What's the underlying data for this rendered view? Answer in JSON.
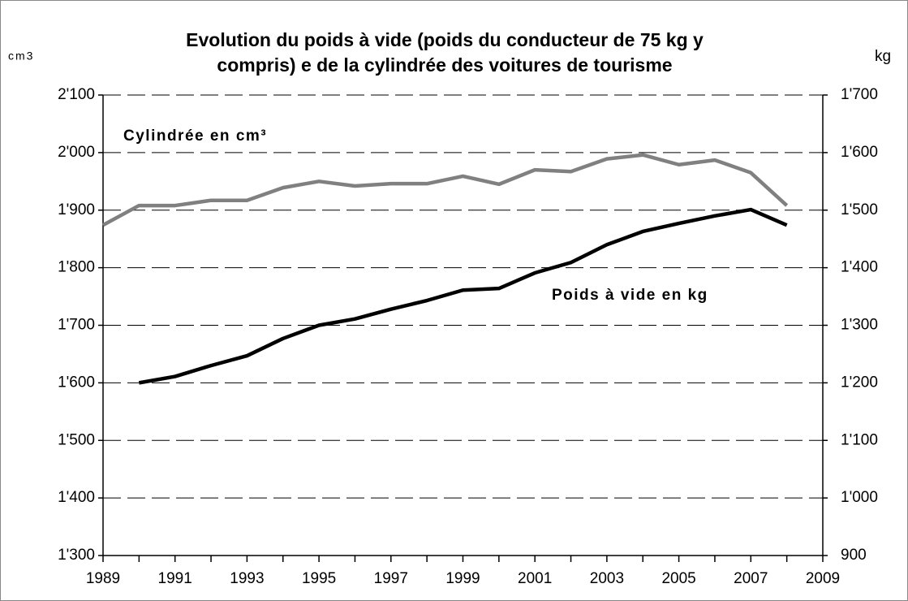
{
  "chart_data": {
    "type": "line",
    "title": [
      "Evolution du poids à vide (poids du conducteur de 75 kg y",
      "compris) e de la cylindrée des voitures de tourisme"
    ],
    "y_axis_label": "cm3",
    "y2_axis_label": "kg",
    "x": [
      1989,
      1990,
      1991,
      1992,
      1993,
      1994,
      1995,
      1996,
      1997,
      1998,
      1999,
      2000,
      2001,
      2002,
      2003,
      2004,
      2005,
      2006,
      2007,
      2008
    ],
    "series": [
      {
        "name": "Cylindrée en cm³",
        "color": "#808080",
        "values": [
          1874,
          1908,
          1908,
          1917,
          1917,
          1939,
          1950,
          1942,
          1946,
          1946,
          1959,
          1945,
          1970,
          1967,
          1989,
          1996,
          1979,
          1987,
          1965,
          1908
        ]
      },
      {
        "name": "Poids à vide en kg",
        "color": "#000000",
        "axis": "y2",
        "values": [
          null,
          1200,
          1211,
          1230,
          1247,
          1277,
          1300,
          1311,
          1328,
          1343,
          1361,
          1364,
          1391,
          1409,
          1440,
          1463,
          1477,
          1490,
          1501,
          1474
        ]
      }
    ],
    "xlim": [
      1989,
      2009
    ],
    "xticks": [
      1989,
      1991,
      1993,
      1995,
      1997,
      1999,
      2001,
      2003,
      2005,
      2007,
      2009
    ],
    "ylim": [
      1300,
      2100
    ],
    "yticks": [
      {
        "value": 1300,
        "label": "1'300"
      },
      {
        "value": 1400,
        "label": "1'400"
      },
      {
        "value": 1500,
        "label": "1'500"
      },
      {
        "value": 1600,
        "label": "1'600"
      },
      {
        "value": 1700,
        "label": "1'700"
      },
      {
        "value": 1800,
        "label": "1'800"
      },
      {
        "value": 1900,
        "label": "1'900"
      },
      {
        "value": 2000,
        "label": "2'000"
      },
      {
        "value": 2100,
        "label": "2'100"
      }
    ],
    "y2lim": [
      900,
      1700
    ],
    "y2ticks": [
      900,
      {
        "value": 1000,
        "label": "1'000"
      },
      {
        "value": 1100,
        "label": "1'100"
      },
      {
        "value": 1200,
        "label": "1'200"
      },
      {
        "value": 1300,
        "label": "1'300"
      },
      {
        "value": 1400,
        "label": "1'400"
      },
      {
        "value": 1500,
        "label": "1'500"
      },
      {
        "value": 1600,
        "label": "1'600"
      },
      {
        "value": 1700,
        "label": "1'700"
      }
    ],
    "grid": true
  }
}
